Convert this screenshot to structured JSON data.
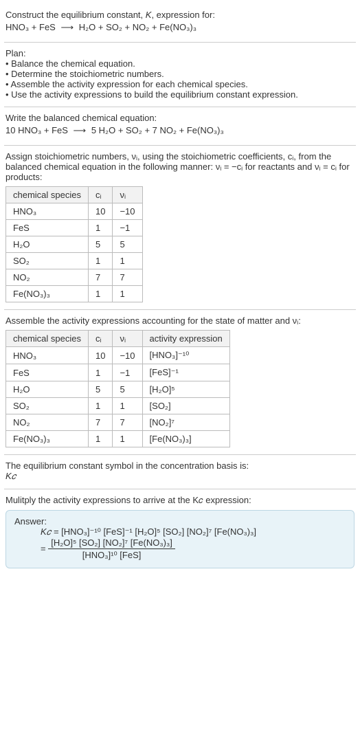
{
  "colors": {
    "border": "#cccccc",
    "answer_bg": "#e8f3f8",
    "answer_border": "#bcd6e3"
  },
  "section1": {
    "title_line1": "Construct the equilibrium constant, K, expression for:",
    "reaction_left": "HNO₃ + FeS",
    "arrow": "⟶",
    "reaction_right": "H₂O + SO₂ + NO₂ + Fe(NO₃)₃"
  },
  "plan": {
    "heading": "Plan:",
    "b1": "• Balance the chemical equation.",
    "b2": "• Determine the stoichiometric numbers.",
    "b3": "• Assemble the activity expression for each chemical species.",
    "b4": "• Use the activity expressions to build the equilibrium constant expression."
  },
  "balanced": {
    "intro": "Write the balanced chemical equation:",
    "left": "10 HNO₃ + FeS",
    "arrow": "⟶",
    "right": "5 H₂O + SO₂ + 7 NO₂ + Fe(NO₃)₃"
  },
  "stoich": {
    "intro1": "Assign stoichiometric numbers, νᵢ, using the stoichiometric coefficients, cᵢ, from the balanced chemical equation in the following manner: νᵢ = −cᵢ for reactants and νᵢ = cᵢ for products:",
    "table": {
      "h1": "chemical species",
      "h2": "cᵢ",
      "h3": "νᵢ",
      "rows": [
        {
          "sp": "HNO₃",
          "c": "10",
          "v": "−10"
        },
        {
          "sp": "FeS",
          "c": "1",
          "v": "−1"
        },
        {
          "sp": "H₂O",
          "c": "5",
          "v": "5"
        },
        {
          "sp": "SO₂",
          "c": "1",
          "v": "1"
        },
        {
          "sp": "NO₂",
          "c": "7",
          "v": "7"
        },
        {
          "sp": "Fe(NO₃)₃",
          "c": "1",
          "v": "1"
        }
      ]
    }
  },
  "activity": {
    "intro": "Assemble the activity expressions accounting for the state of matter and νᵢ:",
    "table": {
      "h1": "chemical species",
      "h2": "cᵢ",
      "h3": "νᵢ",
      "h4": "activity expression",
      "rows": [
        {
          "sp": "HNO₃",
          "c": "10",
          "v": "−10",
          "expr": "[HNO₃]⁻¹⁰"
        },
        {
          "sp": "FeS",
          "c": "1",
          "v": "−1",
          "expr": "[FeS]⁻¹"
        },
        {
          "sp": "H₂O",
          "c": "5",
          "v": "5",
          "expr": "[H₂O]⁵"
        },
        {
          "sp": "SO₂",
          "c": "1",
          "v": "1",
          "expr": "[SO₂]"
        },
        {
          "sp": "NO₂",
          "c": "7",
          "v": "7",
          "expr": "[NO₂]⁷"
        },
        {
          "sp": "Fe(NO₃)₃",
          "c": "1",
          "v": "1",
          "expr": "[Fe(NO₃)₃]"
        }
      ]
    }
  },
  "basis": {
    "line1": "The equilibrium constant symbol in the concentration basis is:",
    "line2": "K𝑐"
  },
  "final": {
    "intro": "Mulitply the activity expressions to arrive at the K𝑐 expression:",
    "answer_label": "Answer:",
    "line1_lhs": "K𝑐 = ",
    "line1_rhs": "[HNO₃]⁻¹⁰ [FeS]⁻¹ [H₂O]⁵ [SO₂] [NO₂]⁷ [Fe(NO₃)₃]",
    "eq2_prefix": " = ",
    "frac_num": "[H₂O]⁵ [SO₂] [NO₂]⁷ [Fe(NO₃)₃]",
    "frac_den": "[HNO₃]¹⁰ [FeS]"
  }
}
